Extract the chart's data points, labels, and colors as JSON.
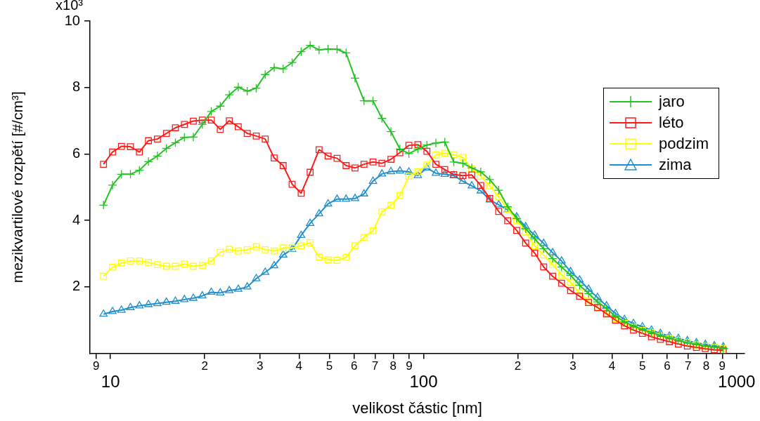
{
  "chart_data": {
    "type": "line",
    "xlabel": "velikost částic [nm]",
    "ylabel": "mezikvartilové rozpětí [#/cm³]",
    "log": "x",
    "grid": false,
    "legend": "top right",
    "line_style": "solid",
    "xlim": [
      8.6,
      1060
    ],
    "ylim": [
      0,
      10
    ],
    "xticks": [
      {
        "value": 9,
        "label": null
      },
      10,
      {
        "value": 20,
        "label": null
      },
      {
        "value": 30,
        "label": null
      },
      {
        "value": 40,
        "label": null
      },
      {
        "value": 50,
        "label": null
      },
      {
        "value": 60,
        "label": null
      },
      {
        "value": 70,
        "label": null
      },
      {
        "value": 80,
        "label": null
      },
      {
        "value": 90,
        "label": null
      },
      100,
      {
        "value": 200,
        "label": null
      },
      {
        "value": 300,
        "label": null
      },
      {
        "value": 400,
        "label": null
      },
      {
        "value": 500,
        "label": null
      },
      {
        "value": 600,
        "label": null
      },
      {
        "value": 700,
        "label": null
      },
      {
        "value": 800,
        "label": null
      },
      {
        "value": 900,
        "label": null
      },
      1000
    ],
    "yticks": [
      2,
      4,
      6,
      8,
      10
    ],
    "annotations": [
      "x10³",
      "9",
      "2",
      "3",
      "4",
      "5",
      "6",
      "7",
      "8",
      "9",
      "2",
      "3",
      "4",
      "5",
      "6",
      "7",
      "8",
      "9"
    ],
    "x": [
      9.5,
      10.15,
      10.84,
      11.58,
      12.37,
      13.22,
      14.12,
      15.09,
      16.12,
      17.22,
      18.39,
      19.65,
      20.99,
      22.42,
      23.96,
      25.59,
      27.34,
      29.21,
      31.2,
      33.33,
      35.61,
      38.04,
      40.64,
      43.42,
      46.38,
      49.55,
      52.93,
      56.55,
      60.41,
      64.53,
      68.94,
      73.65,
      78.68,
      84.05,
      89.79,
      95.93,
      102.5,
      109.5,
      116.9,
      124.9,
      133.5,
      142.6,
      152.3,
      162.7,
      173.8,
      185.7,
      198.4,
      211.9,
      226.4,
      241.9,
      258.4,
      276,
      294.9,
      315,
      336.6,
      359.5,
      384.1,
      410.3,
      438.3,
      468.3,
      500.2,
      534.4,
      570.9,
      609.9,
      651.5,
      696,
      743.6,
      794.3,
      848.6,
      906.5
    ],
    "series": [
      {
        "name": "jaro",
        "color": "#22c322",
        "marker": "cross",
        "values": [
          4.46,
          5.06,
          5.39,
          5.39,
          5.51,
          5.77,
          5.94,
          6.17,
          6.34,
          6.5,
          6.51,
          6.89,
          7.28,
          7.44,
          7.78,
          8.01,
          7.89,
          7.98,
          8.39,
          8.6,
          8.56,
          8.75,
          9.08,
          9.27,
          9.13,
          9.16,
          9.15,
          9.04,
          8.28,
          7.6,
          7.6,
          7.07,
          6.67,
          6.15,
          6.01,
          6.15,
          6.27,
          6.33,
          6.36,
          5.76,
          5.72,
          5.58,
          5.46,
          5.23,
          4.91,
          4.41,
          4.06,
          3.75,
          3.45,
          3.15,
          2.85,
          2.6,
          2.35,
          2.05,
          1.8,
          1.55,
          1.35,
          1.12,
          0.95,
          0.82,
          0.72,
          0.63,
          0.54,
          0.46,
          0.39,
          0.32,
          0.27,
          0.22,
          0.19,
          0.15
        ]
      },
      {
        "name": "léto",
        "color": "#ff1a1a",
        "marker": "square",
        "values": [
          5.69,
          6.06,
          6.23,
          6.22,
          6.06,
          6.4,
          6.45,
          6.62,
          6.79,
          6.89,
          6.99,
          7.02,
          7.02,
          6.74,
          7.0,
          6.82,
          6.62,
          6.54,
          6.45,
          5.88,
          5.65,
          5.09,
          4.82,
          5.45,
          6.13,
          5.94,
          5.87,
          5.65,
          5.58,
          5.69,
          5.76,
          5.72,
          5.84,
          6.04,
          6.26,
          6.28,
          6.08,
          5.69,
          5.53,
          5.38,
          5.35,
          5.37,
          5.05,
          4.66,
          4.27,
          3.99,
          3.7,
          3.32,
          3.02,
          2.6,
          2.32,
          2.11,
          1.89,
          1.72,
          1.53,
          1.38,
          1.19,
          1.0,
          0.83,
          0.7,
          0.6,
          0.5,
          0.42,
          0.35,
          0.28,
          0.22,
          0.18,
          0.14,
          0.11,
          0.09
        ]
      },
      {
        "name": "podzim",
        "color": "#ffff00",
        "marker": "square",
        "values": [
          2.32,
          2.59,
          2.72,
          2.78,
          2.78,
          2.74,
          2.67,
          2.62,
          2.62,
          2.69,
          2.62,
          2.65,
          2.78,
          3.04,
          3.13,
          3.08,
          3.12,
          3.21,
          3.12,
          3.08,
          3.17,
          3.17,
          3.24,
          3.33,
          2.9,
          2.82,
          2.8,
          2.89,
          3.24,
          3.49,
          3.69,
          4.26,
          4.46,
          4.75,
          5.33,
          5.47,
          5.67,
          5.97,
          6.03,
          5.98,
          5.9,
          5.55,
          5.33,
          5.04,
          4.71,
          4.34,
          4.0,
          3.65,
          3.24,
          2.96,
          2.67,
          2.36,
          2.14,
          1.82,
          1.57,
          1.36,
          1.22,
          1.04,
          0.9,
          0.79,
          0.69,
          0.62,
          0.51,
          0.44,
          0.38,
          0.33,
          0.25,
          0.21,
          0.18,
          0.15
        ]
      },
      {
        "name": "zima",
        "color": "#1f8fd0",
        "marker": "triangle",
        "values": [
          1.18,
          1.26,
          1.3,
          1.38,
          1.43,
          1.47,
          1.5,
          1.54,
          1.57,
          1.62,
          1.66,
          1.73,
          1.84,
          1.82,
          1.89,
          1.93,
          2.0,
          2.25,
          2.44,
          2.64,
          2.96,
          3.13,
          3.55,
          3.91,
          4.2,
          4.5,
          4.64,
          4.64,
          4.66,
          4.8,
          5.18,
          5.4,
          5.47,
          5.49,
          5.46,
          5.35,
          5.58,
          5.42,
          5.39,
          5.35,
          5.18,
          5.04,
          4.89,
          4.62,
          4.47,
          4.32,
          4.11,
          3.81,
          3.56,
          3.31,
          3.03,
          2.78,
          2.46,
          2.21,
          1.93,
          1.68,
          1.43,
          1.2,
          1.02,
          0.9,
          0.8,
          0.7,
          0.6,
          0.52,
          0.45,
          0.38,
          0.32,
          0.27,
          0.23,
          0.2
        ]
      }
    ]
  }
}
